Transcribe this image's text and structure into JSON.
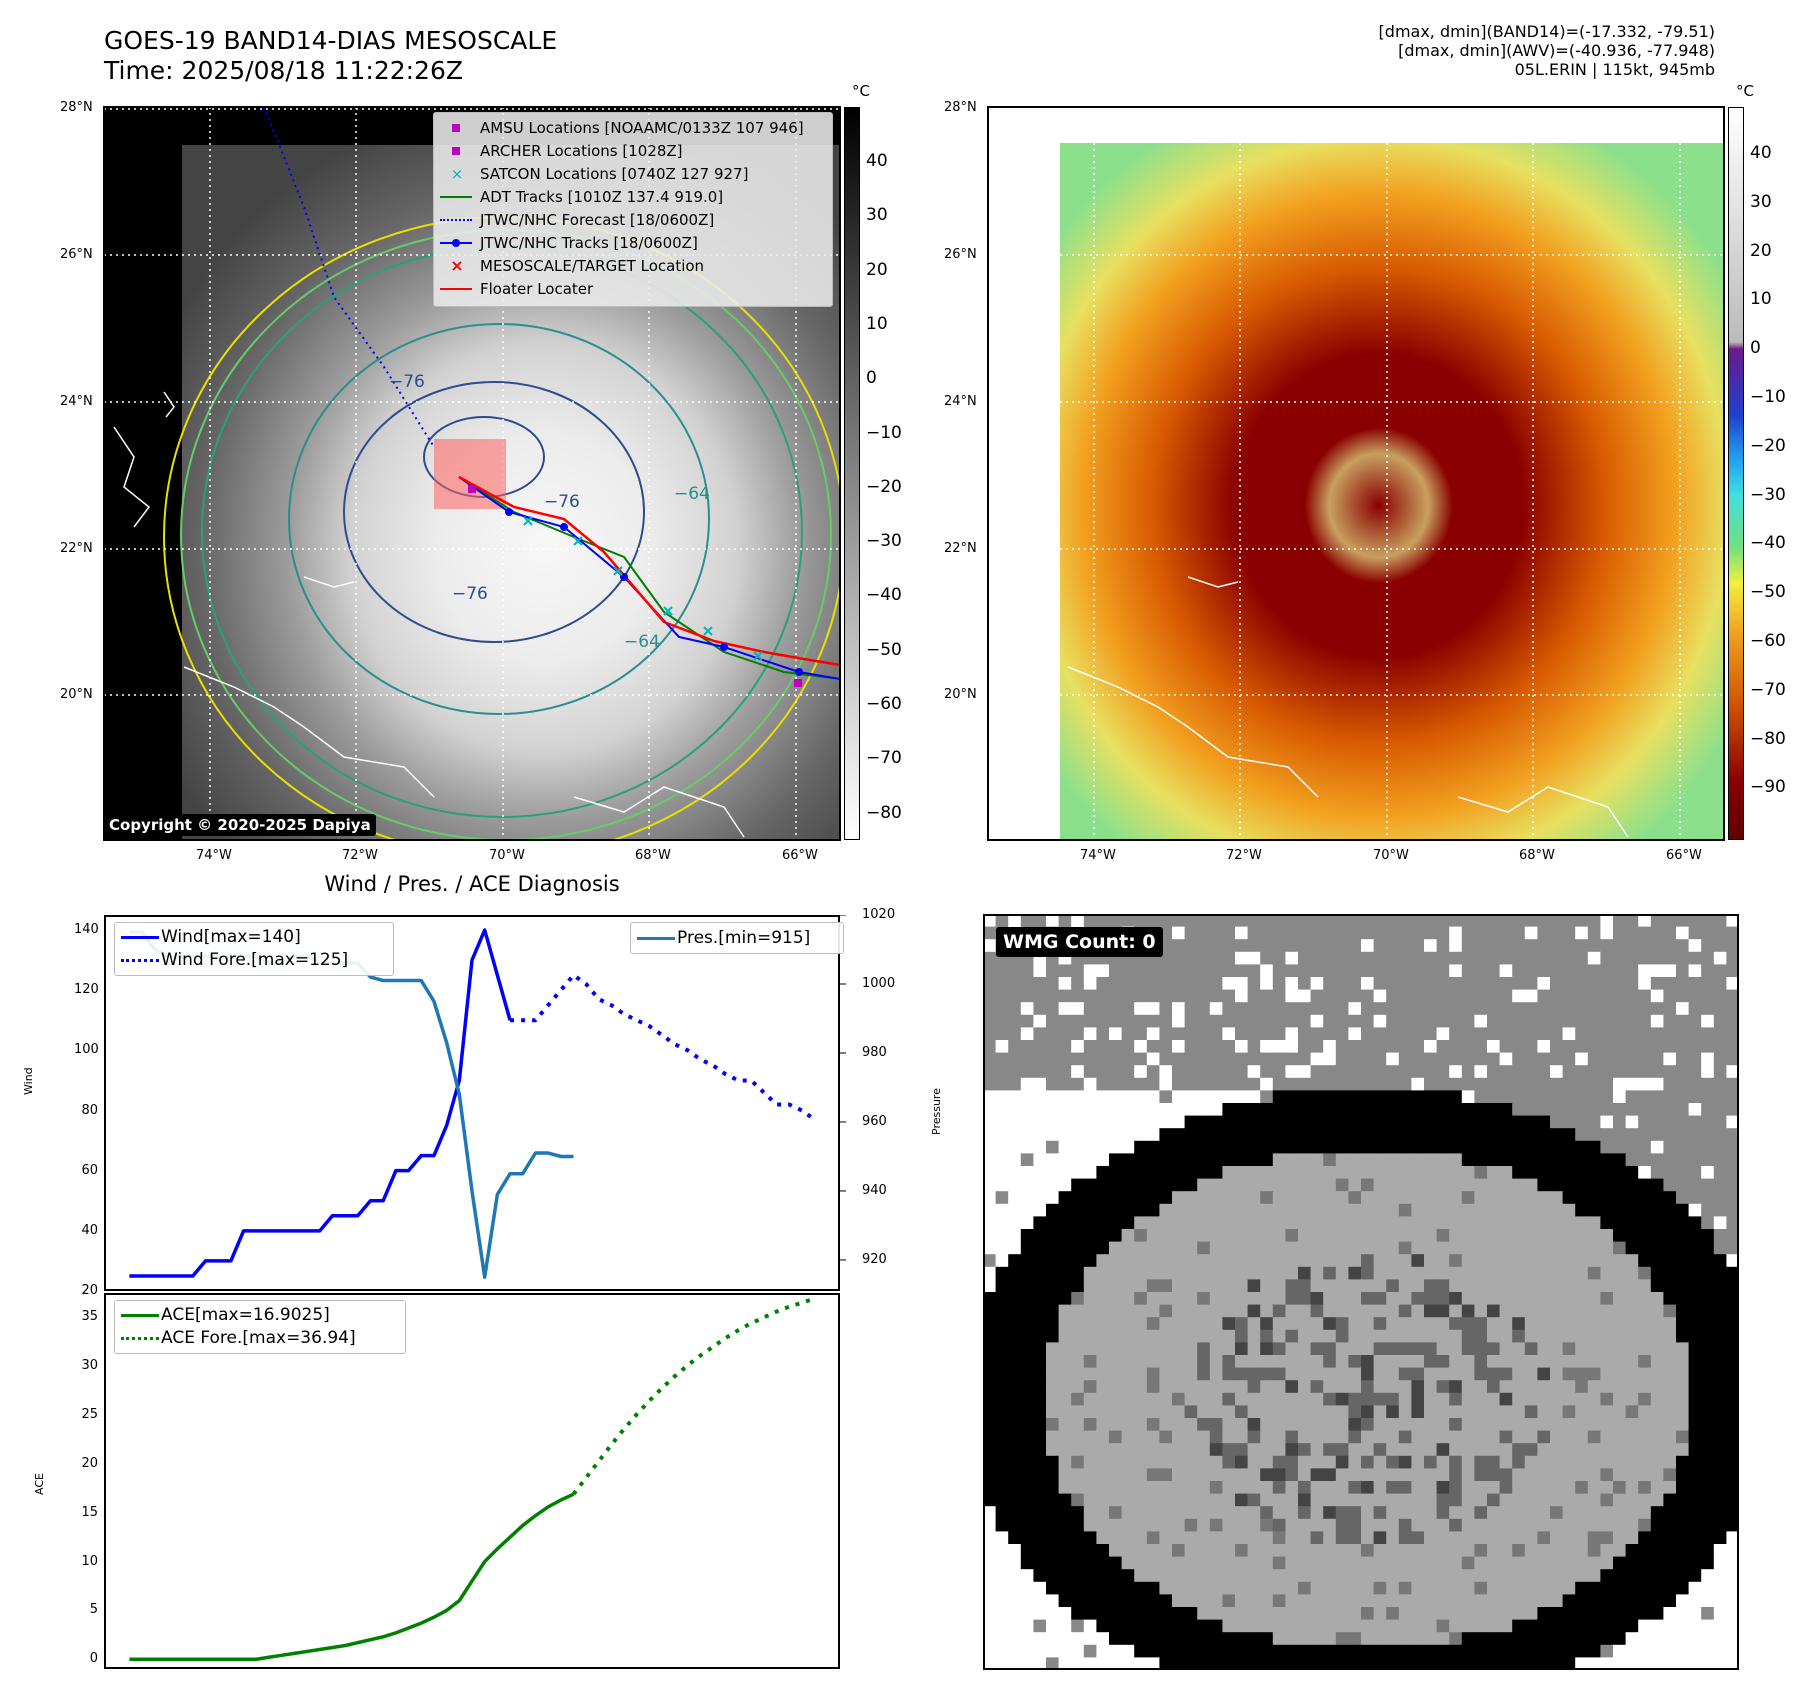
{
  "header": {
    "title_line1": "GOES-19 BAND14-DIAS MESOSCALE",
    "title_line2": "Time: 2025/08/18 11:22:26Z",
    "info_line1": "[dmax, dmin](BAND14)=(-17.332, -79.51)",
    "info_line2": "[dmax, dmin](AWV)=(-40.936, -77.948)",
    "info_line3": "05L.ERIN | 115kt, 945mb"
  },
  "map_ticks": {
    "lat": [
      "28°N",
      "26°N",
      "24°N",
      "22°N",
      "20°N"
    ],
    "lon": [
      "74°W",
      "72°W",
      "70°W",
      "68°W",
      "66°W"
    ]
  },
  "colorbar_ir": {
    "unit": "°C",
    "ticks": [
      "40",
      "30",
      "20",
      "10",
      "0",
      "−10",
      "−20",
      "−30",
      "−40",
      "−50",
      "−60",
      "−70",
      "−80"
    ]
  },
  "colorbar_awv": {
    "unit": "°C",
    "ticks": [
      "40",
      "30",
      "20",
      "10",
      "0",
      "−10",
      "−20",
      "−30",
      "−40",
      "−50",
      "−60",
      "−70",
      "−80",
      "−90"
    ]
  },
  "contour_labels": [
    "−76",
    "−76",
    "−64",
    "−76",
    "−64"
  ],
  "map_legend": [
    {
      "label": "AMSU Locations [NOAAMC/0133Z 107 946]",
      "symbol": "square",
      "color": "#c000c0"
    },
    {
      "label": "ARCHER Locations [1028Z]",
      "symbol": "square",
      "color": "#c000c0"
    },
    {
      "label": "SATCON Locations [0740Z 127 927]",
      "symbol": "x",
      "color": "#00b8b8"
    },
    {
      "label": "ADT Tracks [1010Z 137.4 919.0]",
      "symbol": "line",
      "color": "#008000"
    },
    {
      "label": "JTWC/NHC Forecast [18/0600Z]",
      "symbol": "dotted",
      "color": "#0000ff"
    },
    {
      "label": "JTWC/NHC Tracks [18/0600Z]",
      "symbol": "dotline",
      "color": "#0000ff"
    },
    {
      "label": "MESOSCALE/TARGET Location",
      "symbol": "x",
      "color": "#ff0000"
    },
    {
      "label": "Floater Locater",
      "symbol": "line",
      "color": "#ff0000"
    }
  ],
  "copyright": "Copyright © 2020-2025 Dapiya",
  "wmg_badge": "WMG Count: 0",
  "chart_data": [
    {
      "type": "line",
      "title": "Wind / Pres. / ACE Diagnosis",
      "ylabel": "Wind",
      "y2label": "Pressure",
      "ylim": [
        20,
        145
      ],
      "y2lim": [
        911,
        1020
      ],
      "yticks": [
        20,
        40,
        60,
        80,
        100,
        120,
        140
      ],
      "y2ticks": [
        920,
        940,
        960,
        980,
        1000,
        1020
      ],
      "series": [
        {
          "name": "Wind[max=140]",
          "axis": "left",
          "color": "#0000ff",
          "style": "solid",
          "x": [
            0,
            6,
            12,
            18,
            24,
            30,
            36,
            42,
            48,
            54,
            60,
            66,
            72,
            78,
            84,
            90,
            96,
            102,
            108,
            114,
            120,
            126,
            132,
            138,
            144,
            150,
            156,
            162,
            168,
            174,
            180
          ],
          "values": [
            25,
            25,
            25,
            25,
            25,
            25,
            30,
            30,
            30,
            40,
            40,
            40,
            40,
            40,
            40,
            40,
            45,
            45,
            45,
            50,
            50,
            60,
            60,
            65,
            65,
            75,
            90,
            130,
            140,
            125,
            110
          ]
        },
        {
          "name": "Wind Fore.[max=125]",
          "axis": "left",
          "color": "#0000ff",
          "style": "dotted",
          "x": [
            180,
            186,
            192,
            198,
            204,
            210,
            216,
            222,
            228,
            234,
            240,
            246,
            252,
            258,
            264,
            270,
            276,
            282,
            288,
            294,
            300,
            306,
            312,
            318,
            324
          ],
          "values": [
            110,
            110,
            110,
            115,
            120,
            125,
            122,
            117,
            115,
            112,
            110,
            108,
            105,
            102,
            100,
            97,
            95,
            92,
            90,
            90,
            86,
            82,
            82,
            80,
            77
          ]
        },
        {
          "name": "Pres.[min=915]",
          "axis": "right",
          "color": "#1f77b4",
          "style": "solid",
          "x": [
            0,
            6,
            12,
            18,
            24,
            30,
            36,
            42,
            48,
            54,
            60,
            66,
            72,
            78,
            84,
            90,
            96,
            102,
            108,
            114,
            120,
            126,
            132,
            138,
            144,
            150,
            156,
            162,
            168,
            174,
            180,
            186,
            192,
            198,
            204,
            210
          ],
          "values": [
            1015,
            1015,
            1010,
            1008,
            1008,
            1008,
            1008,
            1008,
            1008,
            1008,
            1008,
            1006,
            1006,
            1008,
            1008,
            1006,
            1006,
            1006,
            1006,
            1002,
            1001,
            1001,
            1001,
            1001,
            995,
            983,
            968,
            940,
            915,
            939,
            945,
            945,
            951,
            951,
            950,
            950
          ]
        }
      ]
    },
    {
      "type": "line",
      "ylabel": "ACE",
      "ylim": [
        -1,
        37.5
      ],
      "yticks": [
        0,
        5,
        10,
        15,
        20,
        25,
        30,
        35
      ],
      "series": [
        {
          "name": "ACE[max=16.9025]",
          "color": "#008000",
          "style": "solid",
          "x": [
            0,
            6,
            12,
            18,
            24,
            30,
            36,
            42,
            48,
            54,
            60,
            66,
            72,
            78,
            84,
            90,
            96,
            102,
            108,
            114,
            120,
            126,
            132,
            138,
            144,
            150,
            156,
            162,
            168,
            174,
            180,
            186,
            192,
            198,
            204,
            210
          ],
          "values": [
            0,
            0,
            0,
            0,
            0,
            0,
            0,
            0,
            0,
            0,
            0,
            0.2,
            0.4,
            0.6,
            0.8,
            1.0,
            1.2,
            1.4,
            1.7,
            2.0,
            2.3,
            2.7,
            3.2,
            3.7,
            4.3,
            5.0,
            6.0,
            8.0,
            10.0,
            11.3,
            12.5,
            13.7,
            14.7,
            15.6,
            16.3,
            16.9
          ]
        },
        {
          "name": "ACE Fore.[max=36.94]",
          "color": "#008000",
          "style": "dotted",
          "x": [
            210,
            216,
            222,
            228,
            234,
            240,
            246,
            252,
            258,
            264,
            270,
            276,
            282,
            288,
            294,
            300,
            306,
            312,
            318,
            324
          ],
          "values": [
            16.9,
            18.6,
            20.3,
            22.0,
            23.6,
            25.1,
            26.5,
            27.8,
            29.0,
            30.1,
            31.1,
            32.0,
            32.9,
            33.7,
            34.4,
            35.0,
            35.6,
            36.1,
            36.5,
            36.94
          ]
        }
      ]
    }
  ]
}
